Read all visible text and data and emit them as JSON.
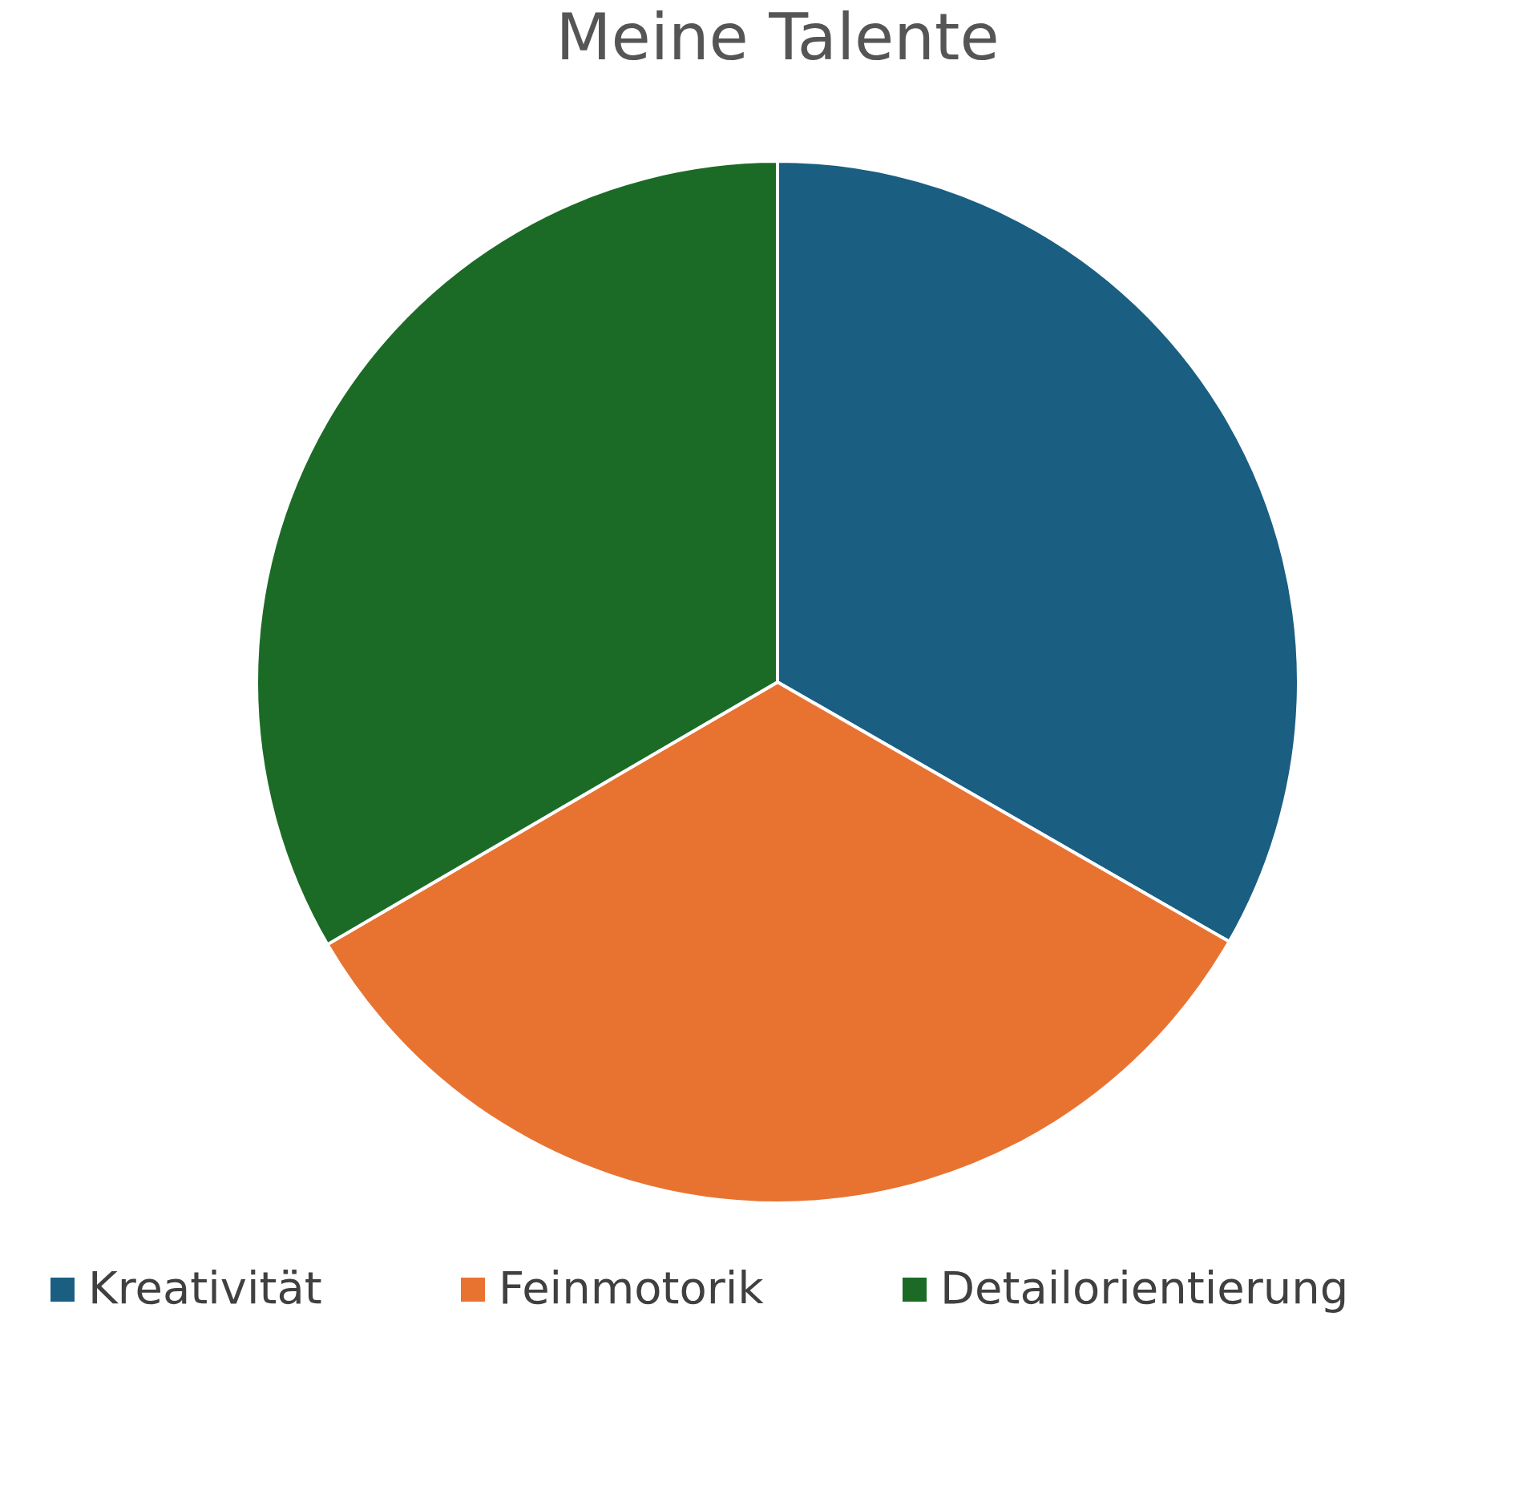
{
  "chart_data": {
    "type": "pie",
    "title": "Meine Talente",
    "categories": [
      "Kreativität",
      "Feinmotorik",
      "Detailorientierung"
    ],
    "values": [
      33.3,
      33.3,
      33.4
    ],
    "colors": [
      "#1a5e82",
      "#e87331",
      "#1b6b26"
    ],
    "legend": "bottom"
  }
}
